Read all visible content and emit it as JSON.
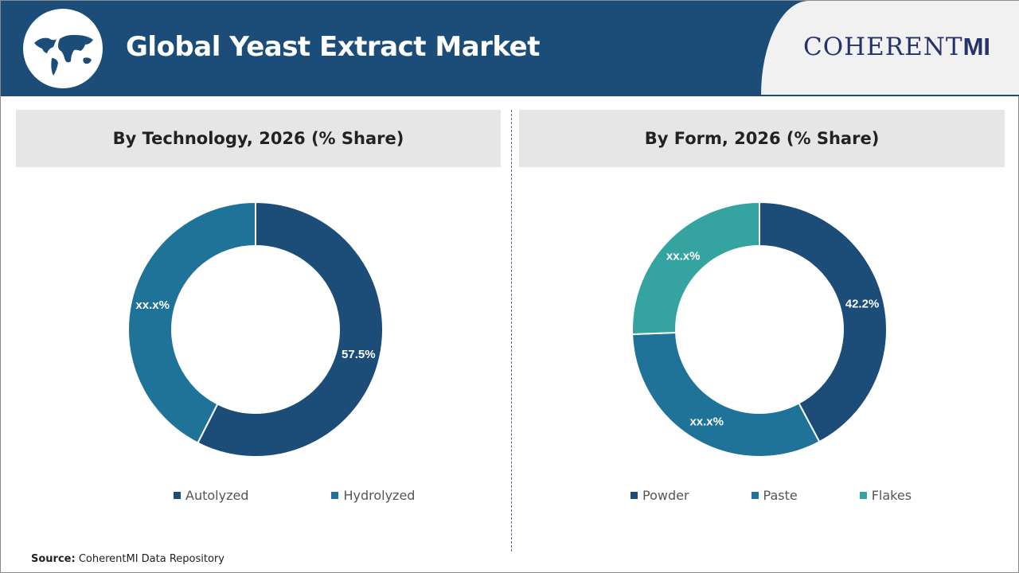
{
  "header": {
    "title": "Global Yeast Extract Market",
    "brand": "COHERENT",
    "brand_mi": "MI"
  },
  "footer": {
    "source_label": "Source:",
    "source_text": " CoherentMI Data Repository"
  },
  "colors": {
    "navy": "#1b4d78",
    "blue": "#1f7399",
    "teal": "#35a3a0"
  },
  "chart_data": [
    {
      "type": "pie",
      "title": "By Technology, 2026 (% Share)",
      "categories": [
        "Autolyzed",
        "Hydrolyzed"
      ],
      "values": [
        57.5,
        42.5
      ],
      "labels": [
        "57.5%",
        "xx.x%"
      ],
      "colors": [
        "#1b4d78",
        "#1f7399"
      ],
      "legend": "bottom"
    },
    {
      "type": "pie",
      "title": "By Form, 2026 (% Share)",
      "categories": [
        "Powder",
        "Paste",
        "Flakes"
      ],
      "values": [
        42.2,
        32.2,
        25.6
      ],
      "labels": [
        "42.2%",
        "xx.x%",
        "xx.x%"
      ],
      "colors": [
        "#1b4d78",
        "#1f7399",
        "#35a3a0"
      ],
      "legend": "bottom"
    }
  ]
}
